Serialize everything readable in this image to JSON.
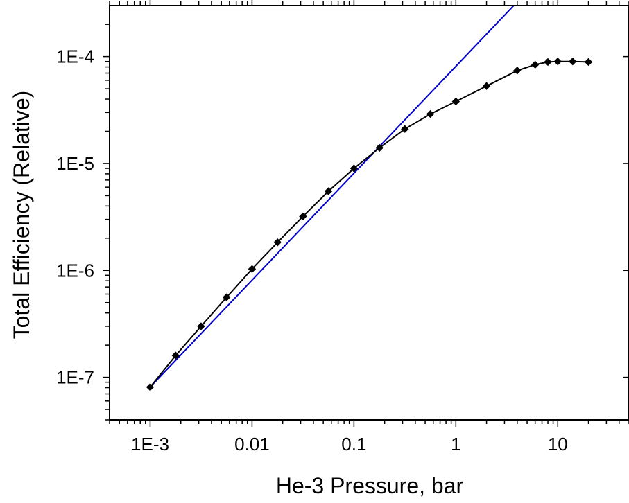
{
  "chart_data": {
    "type": "line",
    "xlabel": "He-3 Pressure, bar",
    "ylabel": "Total Efficiency (Relative)",
    "x_scale": "log",
    "y_scale": "log",
    "xlim": [
      0.0004,
      50
    ],
    "ylim": [
      4e-08,
      0.0003
    ],
    "grid": false,
    "x_tick_values": [
      0.001,
      0.01,
      0.1,
      1,
      10
    ],
    "x_tick_labels": [
      "1E-3",
      "0.01",
      "0.1",
      "1",
      "10"
    ],
    "y_tick_values": [
      1e-07,
      1e-06,
      1e-05,
      0.0001
    ],
    "y_tick_labels": [
      "1E-7",
      "1E-6",
      "1E-5",
      "1E-4"
    ],
    "series": [
      {
        "color": "#000000",
        "marker": "diamond",
        "x": [
          0.001,
          0.00178,
          0.00316,
          0.00562,
          0.01,
          0.0178,
          0.0316,
          0.0562,
          0.1,
          0.178,
          0.316,
          0.562,
          1,
          2,
          4,
          6,
          8,
          10,
          14,
          20
        ],
        "y": [
          8.1e-08,
          1.6e-07,
          3e-07,
          5.6e-07,
          1.03e-06,
          1.83e-06,
          3.2e-06,
          5.5e-06,
          9e-06,
          1.4e-05,
          2.1e-05,
          2.9e-05,
          3.8e-05,
          5.3e-05,
          7.4e-05,
          8.4e-05,
          8.9e-05,
          9e-05,
          9e-05,
          8.9e-05
        ]
      },
      {
        "color": "#0000cc",
        "marker": "none",
        "x": [
          0.001,
          3.8
        ],
        "y": [
          8.1e-08,
          0.000308
        ]
      }
    ]
  }
}
